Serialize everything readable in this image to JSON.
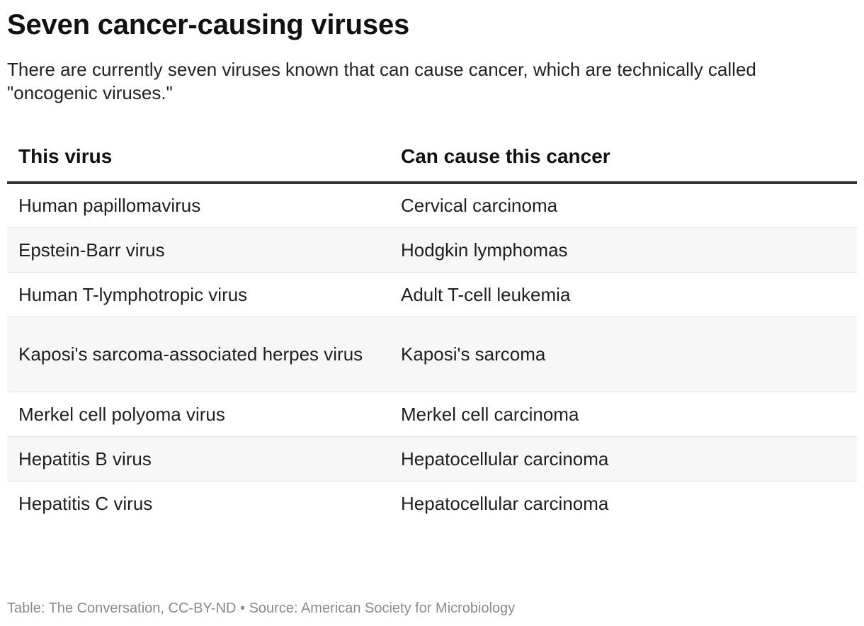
{
  "header": {
    "title": "Seven cancer-causing viruses",
    "subtitle": "There are currently seven viruses known that can cause cancer, which are technically called \"oncogenic viruses.\""
  },
  "chart_data": {
    "type": "table",
    "columns": [
      "This virus",
      "Can cause this cancer"
    ],
    "rows": [
      [
        "Human papillomavirus",
        "Cervical carcinoma"
      ],
      [
        "Epstein-Barr virus",
        "Hodgkin lymphomas"
      ],
      [
        "Human T-lymphotropic virus",
        "Adult T-cell leukemia"
      ],
      [
        "Kaposi's sarcoma-associated herpes virus",
        "Kaposi's sarcoma"
      ],
      [
        "Merkel cell polyoma virus",
        "Merkel cell carcinoma"
      ],
      [
        "Hepatitis B virus",
        "Hepatocellular carcinoma"
      ],
      [
        "Hepatitis C virus",
        "Hepatocellular carcinoma"
      ]
    ]
  },
  "footer": {
    "credit": "Table: The Conversation, CC-BY-ND • Source: American Society for Microbiology"
  },
  "colors": {
    "header_rule": "#333333",
    "row_divider": "#e2e2e2",
    "row_stripe": "#f7f7f7",
    "footer_text": "#8a8a8a"
  }
}
